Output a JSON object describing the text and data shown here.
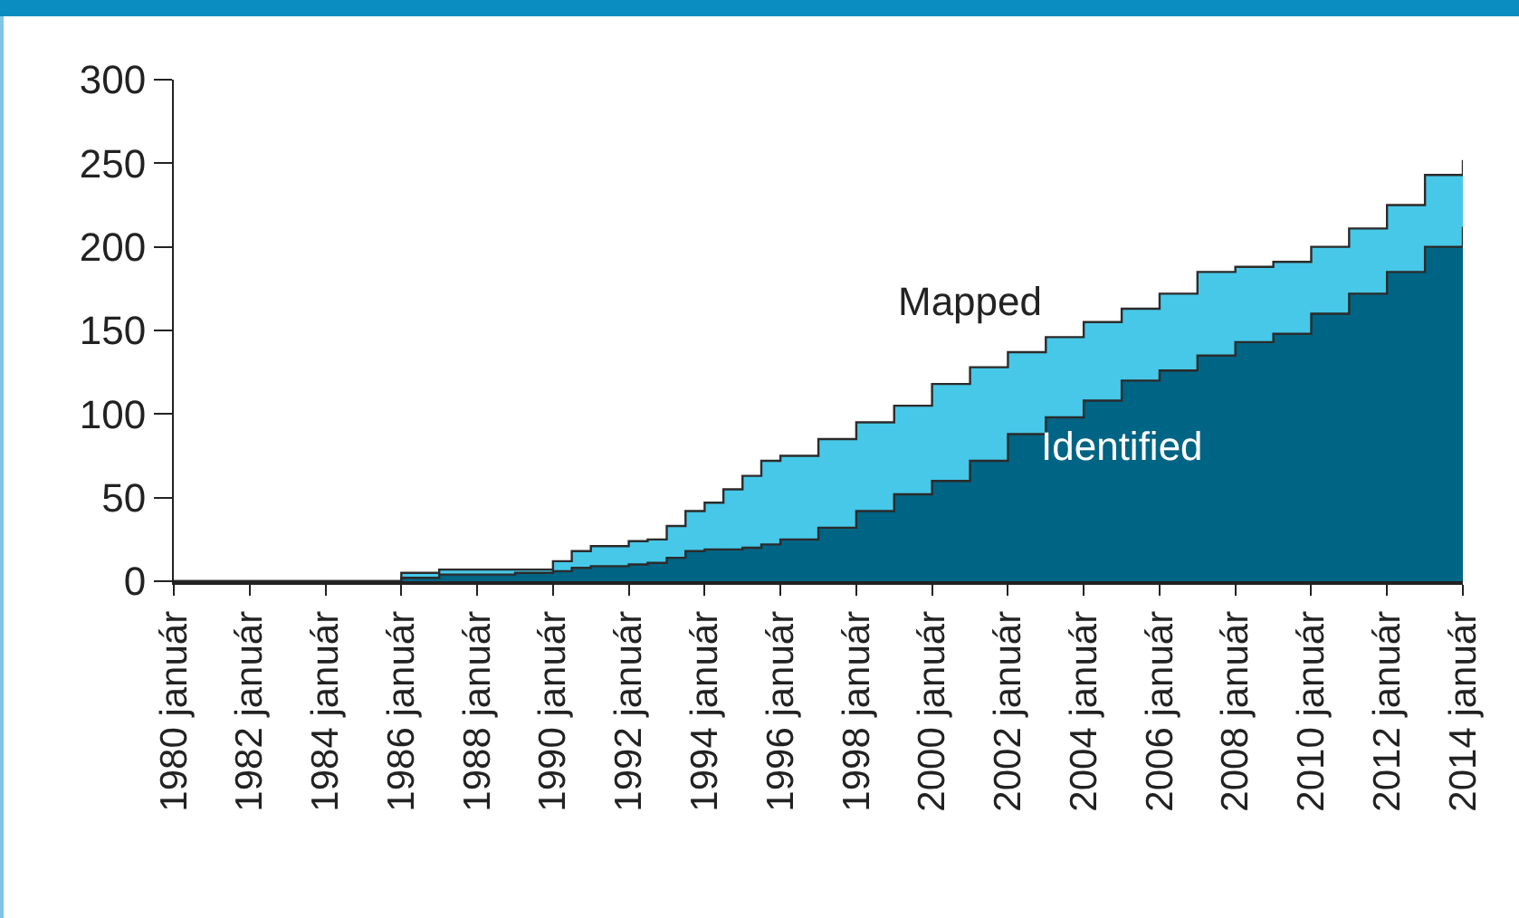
{
  "chart_data": {
    "type": "area",
    "x": [
      "1980-01",
      "1985-01",
      "1986-01",
      "1987-01",
      "1989-01",
      "1990-01",
      "1990-07",
      "1991-01",
      "1992-01",
      "1992-07",
      "1993-01",
      "1993-07",
      "1994-01",
      "1994-07",
      "1995-01",
      "1995-07",
      "1996-01",
      "1997-01",
      "1998-01",
      "1999-01",
      "2000-01",
      "2001-01",
      "2002-01",
      "2003-01",
      "2004-01",
      "2005-01",
      "2006-01",
      "2007-01",
      "2008-01",
      "2009-01",
      "2010-01",
      "2011-01",
      "2012-01",
      "2013-01",
      "2014-01"
    ],
    "series": [
      {
        "name": "Mapped",
        "color": "#47c8e8",
        "values": [
          0,
          0,
          5,
          7,
          7,
          12,
          18,
          21,
          24,
          25,
          33,
          42,
          47,
          55,
          63,
          72,
          75,
          85,
          95,
          105,
          118,
          128,
          137,
          146,
          155,
          163,
          172,
          185,
          188,
          191,
          200,
          211,
          225,
          243,
          252
        ]
      },
      {
        "name": "Identified",
        "color": "#006484",
        "values": [
          0,
          0,
          2,
          4,
          5,
          6,
          8,
          9,
          10,
          11,
          14,
          18,
          19,
          19,
          20,
          22,
          25,
          32,
          42,
          52,
          60,
          72,
          88,
          98,
          108,
          120,
          126,
          135,
          143,
          148,
          160,
          172,
          185,
          200,
          212
        ]
      }
    ],
    "xlim": [
      "1980-01",
      "2014-01"
    ],
    "xticks": [
      {
        "value": "1980-01",
        "label": "1980 január"
      },
      {
        "value": "1982-01",
        "label": "1982 január"
      },
      {
        "value": "1984-01",
        "label": "1984 január"
      },
      {
        "value": "1986-01",
        "label": "1986 január"
      },
      {
        "value": "1988-01",
        "label": "1988 január"
      },
      {
        "value": "1990-01",
        "label": "1990 január"
      },
      {
        "value": "1992-01",
        "label": "1992 január"
      },
      {
        "value": "1994-01",
        "label": "1994 január"
      },
      {
        "value": "1996-01",
        "label": "1996 január"
      },
      {
        "value": "1998-01",
        "label": "1998 január"
      },
      {
        "value": "2000-01",
        "label": "2000 január"
      },
      {
        "value": "2002-01",
        "label": "2002 január"
      },
      {
        "value": "2004-01",
        "label": "2004 január"
      },
      {
        "value": "2006-01",
        "label": "2006 január"
      },
      {
        "value": "2008-01",
        "label": "2008 január"
      },
      {
        "value": "2010-01",
        "label": "2010 január"
      },
      {
        "value": "2012-01",
        "label": "2012 január"
      },
      {
        "value": "2014-01",
        "label": "2014 január"
      }
    ],
    "ylim": [
      0,
      300
    ],
    "yticks": [
      0,
      50,
      100,
      150,
      200,
      250,
      300
    ],
    "grid": false,
    "legend": false
  }
}
